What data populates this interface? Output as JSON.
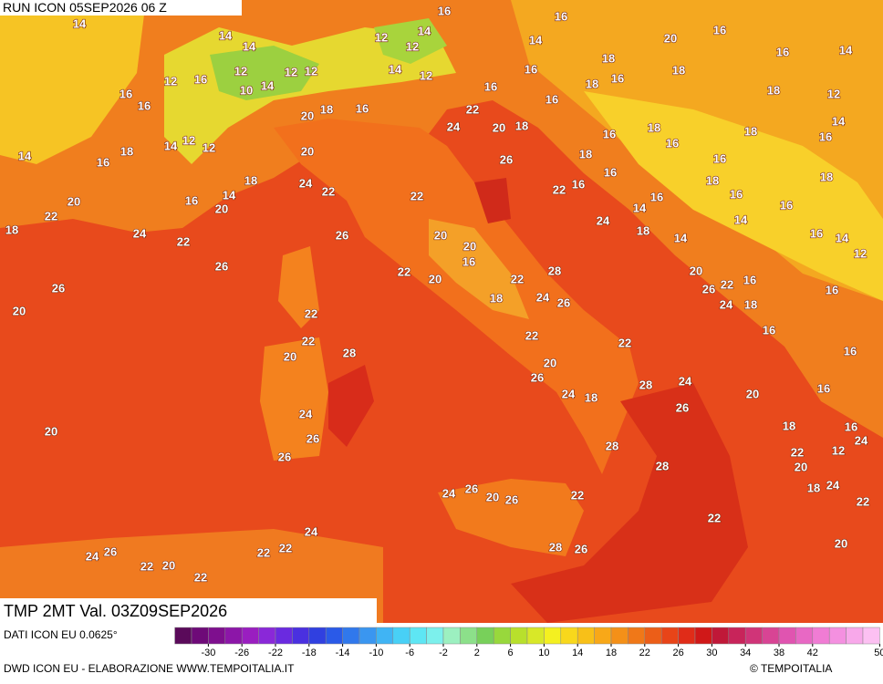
{
  "header": {
    "run": "RUN ICON 05SEP2026 06 Z",
    "field": "TMP 2MT Val. 03Z09SEP2026"
  },
  "map_labels": [
    14,
    14,
    14,
    12,
    16,
    12,
    12,
    12,
    10,
    14,
    16,
    16,
    12,
    12,
    14,
    16,
    14,
    12,
    14,
    16,
    16,
    18,
    20,
    16,
    16,
    14,
    18,
    16,
    16,
    18,
    16,
    18,
    12,
    14,
    16,
    18,
    16,
    18,
    16,
    18,
    18,
    20,
    22,
    24,
    20,
    18,
    16,
    12,
    12,
    14,
    18,
    16,
    14,
    20,
    26,
    16,
    16,
    18,
    18,
    16,
    16,
    22,
    16,
    16,
    14,
    24,
    18,
    14,
    14,
    16,
    14,
    12,
    18,
    24,
    22,
    16,
    14,
    20,
    20,
    22,
    18,
    24,
    22,
    26,
    26,
    22,
    20,
    20,
    16,
    22,
    20,
    22,
    28,
    24,
    26,
    18,
    26,
    20,
    22,
    22,
    20,
    28,
    22,
    20,
    26,
    24,
    18,
    22,
    28,
    24,
    26,
    20,
    20,
    26,
    22,
    16,
    24,
    18,
    16,
    16,
    16,
    16,
    18,
    16,
    12,
    24,
    22,
    20,
    24,
    18,
    22,
    20,
    24,
    26,
    26,
    20,
    28,
    28,
    22,
    22,
    24,
    26,
    20,
    26,
    24,
    22,
    22,
    24,
    26,
    22,
    20,
    22,
    28,
    26
  ],
  "footer": {
    "source": "DATI ICON EU 0.0625°",
    "credit": "DWD ICON EU - ELABORAZIONE WWW.TEMPOITALIA.IT",
    "brand": "© TEMPOITALIA"
  },
  "colorbar": {
    "ticks": [
      -30,
      -26,
      -22,
      -18,
      -14,
      -10,
      -6,
      -2,
      2,
      6,
      10,
      14,
      18,
      22,
      26,
      30,
      34,
      38,
      42,
      50
    ],
    "colors": [
      "#5a0a5a",
      "#6e0a78",
      "#7e0f8e",
      "#8c16a8",
      "#9a1ec0",
      "#8a28d8",
      "#6a2ae0",
      "#4a30e0",
      "#3040e0",
      "#2a5ae8",
      "#3078ec",
      "#3a96f0",
      "#40b4f4",
      "#48d0f6",
      "#5ee6f4",
      "#7cf0ec",
      "#9cf0c0",
      "#8ce08a",
      "#78d05a",
      "#98d83c",
      "#b8e02c",
      "#d8e828",
      "#f4f020",
      "#f8d81c",
      "#f8c018",
      "#f8a818",
      "#f49018",
      "#f07818",
      "#ec5e18",
      "#e84418",
      "#e02c18",
      "#d01818",
      "#c01838",
      "#c8245a",
      "#d03478",
      "#d84494",
      "#e054b0",
      "#e868c4",
      "#f07cd4",
      "#f490e0",
      "#f8a8ea",
      "#fcc0f2"
    ]
  }
}
